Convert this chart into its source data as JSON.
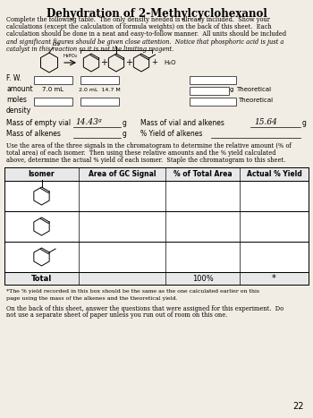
{
  "title": "Dehydration of 2-Methylcyclohexanol",
  "bg_color": "#f2ede4",
  "intro_text_normal": "Complete the following table.  The only density needed is already included.  Show your\ncalculations (except the calculation of formula weights) on the back of this sheet.  Each\ncalculation should be done in a neat and easy-to-follow manner.  All units should be included",
  "intro_text_italic": "and significant figures should be given close attention.  Notice that phosphoric acid is just a\ncatalyst in this reaction so it is not the limiting reagent.",
  "fw_label": "F. W.",
  "amount_label": "amount",
  "moles_label": "moles",
  "density_label": "density",
  "amount_val1": "7.0 mL",
  "amount_val2": "2.0 mL  14.7 M",
  "h3po4_label": "H₃PO₄",
  "theoretical_label": "Theoretical",
  "theoretical_label2": "Theoretical",
  "g_unit": "g",
  "mass_empty_vial_label": "Mass of empty vial",
  "mass_empty_vial_val": "14.43ᵍ",
  "mass_vial_alkenes_label": "Mass of vial and alkenes",
  "mass_vial_alkenes_val": "15.64",
  "mass_alkenes_label": "Mass of alkenes",
  "yield_label": "% Yield of alkenes",
  "gc_text": "Use the area of the three signals in the chromatogram to determine the relative amount (% of\ntotal area) of each isomer.  Then using these relative amounts and the % yield calculated\nabove, determine the actual % yield of each isomer.  Staple the chromatogram to this sheet.",
  "table_headers": [
    "Isomer",
    "Area of GC Signal",
    "% of Total Area",
    "Actual % Yield"
  ],
  "total_label": "Total",
  "total_pct": "100%",
  "total_star": "*",
  "footnote": "*The % yield recorded in this box should be the same as the one calculated earlier on this\npage using the mass of the alkenes and the theoretical yield.",
  "closing_text": "On the back of this sheet, answer the questions that were assigned for this experiment.  Do\nnot use a separate sheet of paper unless you run out of room on this one.",
  "page_num": "22"
}
